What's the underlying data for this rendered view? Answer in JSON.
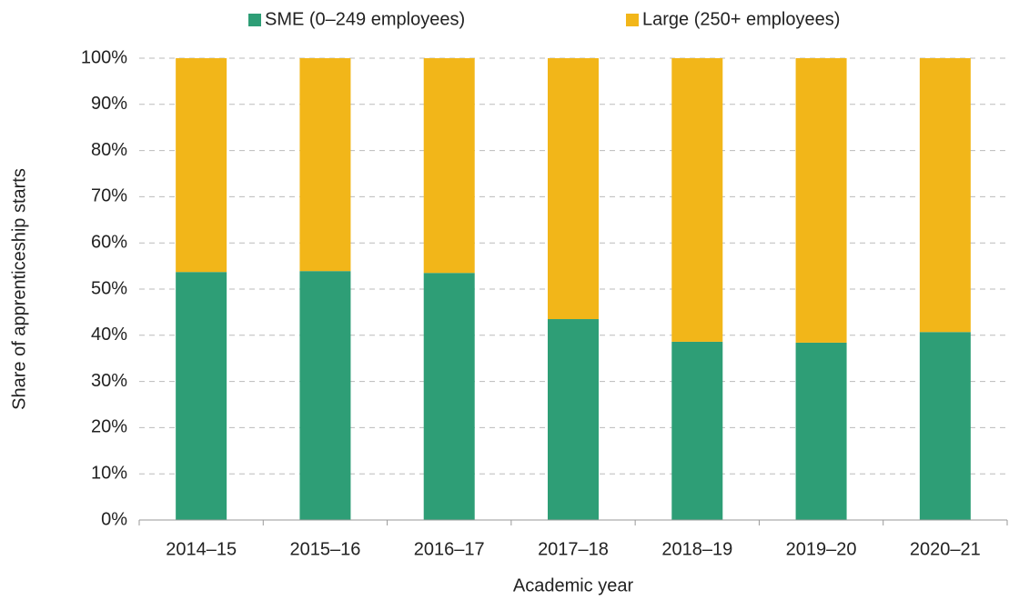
{
  "chart_data": {
    "type": "stacked_bar",
    "x_label": "Academic year",
    "y_label": "Share of apprenticeship starts",
    "categories": [
      "2014–15",
      "2015–16",
      "2016–17",
      "2017–18",
      "2018–19",
      "2019–20",
      "2020–21"
    ],
    "series": [
      {
        "name": "SME (0–249 employees)",
        "color": "#2e9e76",
        "values": [
          53.7,
          53.9,
          53.5,
          43.5,
          38.6,
          38.4,
          40.7
        ]
      },
      {
        "name": "Large (250+ employees)",
        "color": "#f2b619",
        "values": [
          46.3,
          46.1,
          46.5,
          56.5,
          61.4,
          61.6,
          59.3
        ]
      }
    ],
    "ylim": [
      0,
      100
    ],
    "yticks": [
      {
        "value": 0,
        "label": "0%"
      },
      {
        "value": 10,
        "label": "10%"
      },
      {
        "value": 20,
        "label": "20%"
      },
      {
        "value": 30,
        "label": "30%"
      },
      {
        "value": 40,
        "label": "40%"
      },
      {
        "value": 50,
        "label": "50%"
      },
      {
        "value": 60,
        "label": "60%"
      },
      {
        "value": 70,
        "label": "70%"
      },
      {
        "value": 80,
        "label": "80%"
      },
      {
        "value": 90,
        "label": "90%"
      },
      {
        "value": 100,
        "label": "100%"
      }
    ],
    "grid": true,
    "legend": "top"
  }
}
